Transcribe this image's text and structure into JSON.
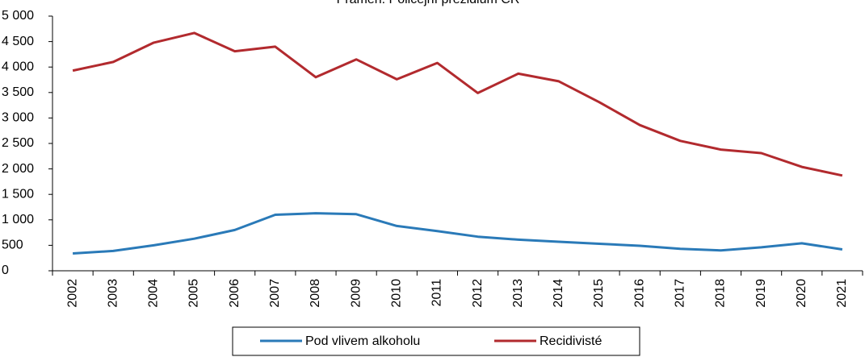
{
  "chart_data": {
    "type": "line",
    "title": "Pramen: Policejní prezidium ČR",
    "categories": [
      "2002",
      "2003",
      "2004",
      "2005",
      "2006",
      "2007",
      "2008",
      "2009",
      "2010",
      "2011",
      "2012",
      "2013",
      "2014",
      "2015",
      "2016",
      "2017",
      "2018",
      "2019",
      "2020",
      "2021"
    ],
    "series": [
      {
        "name": "Pod vlivem alkoholu",
        "color": "#2a7ab8",
        "values": [
          340,
          390,
          500,
          630,
          800,
          1100,
          1130,
          1110,
          880,
          780,
          670,
          610,
          570,
          530,
          490,
          430,
          400,
          460,
          540,
          420
        ]
      },
      {
        "name": "Recidivisté",
        "color": "#b22a2e",
        "values": [
          3930,
          4100,
          4480,
          4670,
          4310,
          4400,
          3800,
          4150,
          3760,
          4080,
          3490,
          3870,
          3720,
          3310,
          2860,
          2550,
          2380,
          2310,
          2040,
          1870
        ]
      }
    ],
    "ylim": [
      0,
      5000
    ],
    "yticks": [
      0,
      500,
      {
        "value": 1000,
        "label": "1 000"
      },
      {
        "value": 1500,
        "label": "1 500"
      },
      {
        "value": 2000,
        "label": "2 000"
      },
      {
        "value": 2500,
        "label": "2 500"
      },
      {
        "value": 3000,
        "label": "3 000"
      },
      {
        "value": 3500,
        "label": "3 500"
      },
      {
        "value": 4000,
        "label": "4 000"
      },
      {
        "value": 4500,
        "label": "4 500"
      },
      {
        "value": 5000,
        "label": "5 000"
      }
    ],
    "grid": false,
    "legend": "bottom"
  }
}
